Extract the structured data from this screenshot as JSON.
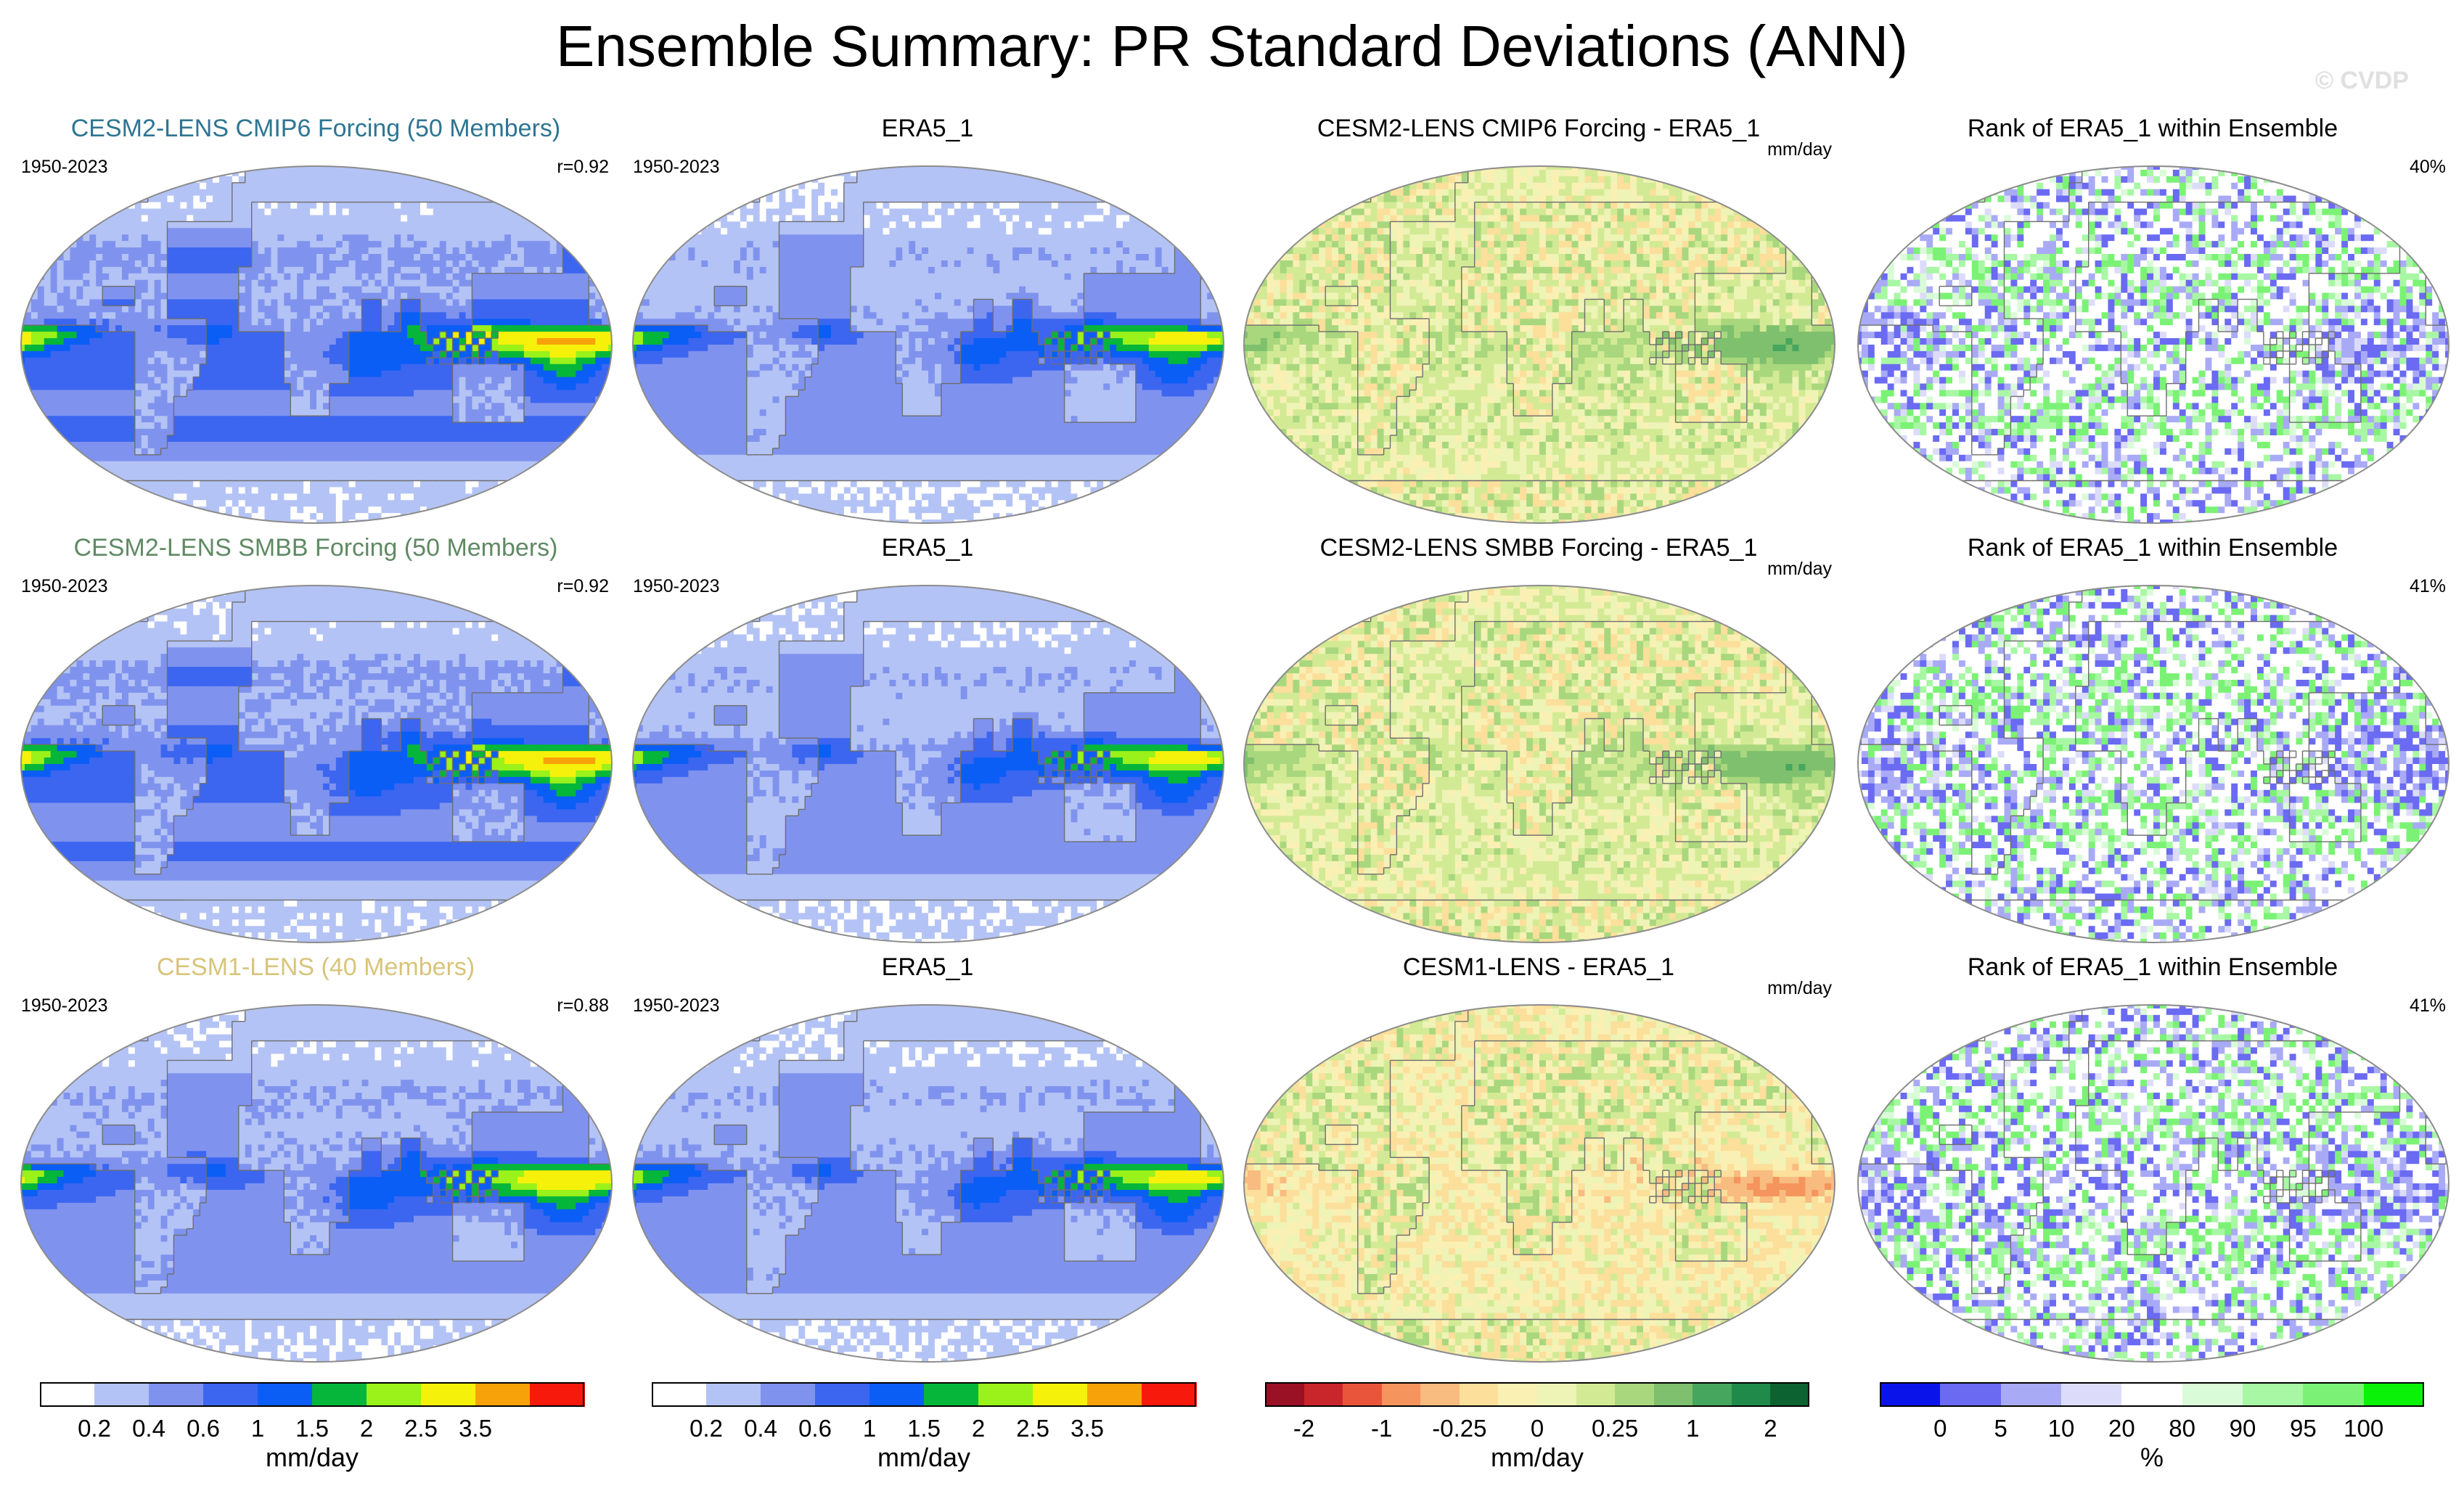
{
  "title": "Ensemble Summary: PR Standard Deviations (ANN)",
  "watermark": "© CVDP",
  "columns": [
    {
      "kind": "ensemble-mean",
      "palette": "std"
    },
    {
      "kind": "observations",
      "palette": "std"
    },
    {
      "kind": "difference",
      "palette": "diff"
    },
    {
      "kind": "rank",
      "palette": "rank"
    }
  ],
  "rows": [
    {
      "ensemble_title": "CESM2-LENS CMIP6 Forcing (50 Members)",
      "ensemble_color": "#2e7592",
      "period": "1950-2023",
      "pattern_corr": "r=0.92",
      "obs_title": "ERA5_1",
      "obs_period": "1950-2023",
      "diff_title": "CESM2-LENS CMIP6 Forcing - ERA5_1",
      "diff_units": "mm/day",
      "rank_title": "Rank of ERA5_1 within Ensemble",
      "rank_pct": "40%",
      "model_scale": 1.12,
      "diff_sign": 1
    },
    {
      "ensemble_title": "CESM2-LENS SMBB Forcing (50 Members)",
      "ensemble_color": "#5f8a63",
      "period": "1950-2023",
      "pattern_corr": "r=0.92",
      "obs_title": "ERA5_1",
      "obs_period": "1950-2023",
      "diff_title": "CESM2-LENS SMBB Forcing - ERA5_1",
      "diff_units": "mm/day",
      "rank_title": "Rank of ERA5_1 within Ensemble",
      "rank_pct": "41%",
      "model_scale": 1.1,
      "diff_sign": 1
    },
    {
      "ensemble_title": "CESM1-LENS (40 Members)",
      "ensemble_color": "#d8c47a",
      "period": "1950-2023",
      "pattern_corr": "r=0.88",
      "obs_title": "ERA5_1",
      "obs_period": "1950-2023",
      "diff_title": "CESM1-LENS - ERA5_1",
      "diff_units": "mm/day",
      "rank_title": "Rank of ERA5_1 within Ensemble",
      "rank_pct": "41%",
      "model_scale": 0.98,
      "diff_sign": -1
    }
  ],
  "chart_data": {
    "type": "heatmap",
    "title": "Ensemble Summary: PR Standard Deviations (ANN)",
    "projection": "Robinson (global)",
    "colorbars": [
      {
        "name": "std",
        "units": "mm/day",
        "levels": [
          0.2,
          0.4,
          0.6,
          1,
          1.5,
          2,
          2.5,
          3.5
        ],
        "tick_labels": [
          "0.2",
          "0.4",
          "0.6",
          "1",
          "1.5",
          "2",
          "2.5",
          "3.5"
        ],
        "colors": [
          "#ffffff",
          "#b4c3f5",
          "#7f93ee",
          "#3c66f0",
          "#0b5ef5",
          "#05b63a",
          "#9af21a",
          "#f6f10a",
          "#f8a20a",
          "#f71a0c"
        ]
      },
      {
        "name": "std-obs",
        "units": "mm/day",
        "levels": [
          0.2,
          0.4,
          0.6,
          1,
          1.5,
          2,
          2.5,
          3.5
        ],
        "tick_labels": [
          "0.2",
          "0.4",
          "0.6",
          "1",
          "1.5",
          "2",
          "2.5",
          "3.5"
        ],
        "colors": [
          "#ffffff",
          "#b4c3f5",
          "#7f93ee",
          "#3c66f0",
          "#0b5ef5",
          "#05b63a",
          "#9af21a",
          "#f6f10a",
          "#f8a20a",
          "#f71a0c"
        ]
      },
      {
        "name": "diff",
        "units": "mm/day",
        "levels": [
          -2,
          -1.5,
          -1,
          -0.5,
          -0.25,
          -0.1,
          0,
          0.1,
          0.25,
          0.5,
          1,
          1.5,
          2
        ],
        "tick_labels": [
          "-2",
          "-1",
          "-0.25",
          "0",
          "0.25",
          "1",
          "2"
        ],
        "tick_level_values": [
          -2,
          -1,
          -0.25,
          0,
          0.25,
          1,
          2
        ],
        "colors": [
          "#9a1025",
          "#c9262b",
          "#e9553b",
          "#f5945c",
          "#f8bb80",
          "#fbdf9b",
          "#faf0b4",
          "#eef3b6",
          "#d3ea95",
          "#a9d77d",
          "#7ec06d",
          "#46a65d",
          "#1f8a4a",
          "#0c6231"
        ]
      },
      {
        "name": "rank",
        "units": "%",
        "levels": [
          0,
          5,
          10,
          20,
          80,
          90,
          95,
          100
        ],
        "tick_labels": [
          "0",
          "5",
          "10",
          "20",
          "80",
          "90",
          "95",
          "100"
        ],
        "colors": [
          "#0a14ea",
          "#6a6af2",
          "#a9aaf6",
          "#dcdcfa",
          "#ffffff",
          "#dafbd8",
          "#a8f7a4",
          "#7bf275",
          "#0af208"
        ]
      }
    ],
    "panels": [
      {
        "row": 1,
        "title": "CESM2-LENS CMIP6 Forcing (50 Members)",
        "pattern_correlation": 0.92
      },
      {
        "row": 2,
        "title": "CESM2-LENS SMBB Forcing (50 Members)",
        "pattern_correlation": 0.92
      },
      {
        "row": 3,
        "title": "CESM1-LENS (40 Members)",
        "pattern_correlation": 0.88
      },
      {
        "row": 1,
        "title": "Rank of ERA5_1 within Ensemble",
        "percent_value": 40
      },
      {
        "row": 2,
        "title": "Rank of ERA5_1 within Ensemble",
        "percent_value": 41
      },
      {
        "row": 3,
        "title": "Rank of ERA5_1 within Ensemble",
        "percent_value": 41
      }
    ]
  }
}
